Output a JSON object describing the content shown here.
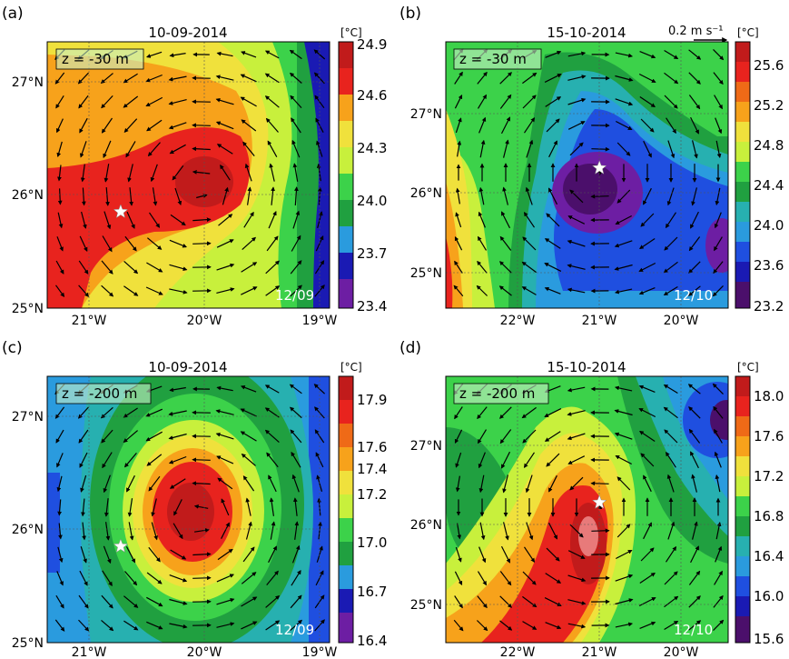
{
  "scale": {
    "label": "0.2 m s⁻¹"
  },
  "colors": {
    "deep_purple": "#4b0f6b",
    "purple": "#6d1ea3",
    "dark_blue": "#1a1ab3",
    "blue": "#1f4fe0",
    "light_blue": "#2a9bde",
    "teal": "#27b0b0",
    "dark_green": "#20a040",
    "green": "#3cd24a",
    "yellowgreen": "#c8f03c",
    "yellow": "#f0e13c",
    "orange": "#f7a21b",
    "dark_orange": "#ef6a17",
    "red": "#e8231e",
    "dark_red": "#c11b1b"
  },
  "chart_data": [
    {
      "panel": "(a)",
      "type": "heatmap",
      "title": "10-09-2014",
      "depth_label": "z = -30 m",
      "stamp": "12/09",
      "unit": "[°C]",
      "x_ticks": [
        "21°W",
        "20°W",
        "19°W"
      ],
      "y_ticks": [
        "27°N",
        "26°N",
        "25°N"
      ],
      "xlim": [
        -21.4,
        -18.9
      ],
      "ylim": [
        25.0,
        27.35
      ],
      "colorbar": {
        "ticks": [
          "24.9",
          "24.6",
          "24.3",
          "24.0",
          "23.7",
          "23.4"
        ],
        "range": [
          23.4,
          24.9
        ]
      },
      "feature": "warm anticyclonic eddy",
      "eddy_center": [
        -20.05,
        26.05
      ],
      "eddy_value": 24.85,
      "star": [
        -20.75,
        25.85
      ]
    },
    {
      "panel": "(b)",
      "type": "heatmap",
      "title": "15-10-2014",
      "depth_label": "z = -30 m",
      "stamp": "12/10",
      "unit": "[°C]",
      "x_ticks": [
        "22°W",
        "21°W",
        "20°W"
      ],
      "y_ticks": [
        "27°N",
        "26°N",
        "25°N"
      ],
      "xlim": [
        -22.9,
        -19.5
      ],
      "ylim": [
        24.5,
        27.35
      ],
      "colorbar": {
        "ticks": [
          "25.6",
          "25.2",
          "24.8",
          "24.4",
          "24.0",
          "23.6",
          "23.2"
        ],
        "range": [
          23.2,
          25.8
        ]
      },
      "feature": "cold cyclonic core",
      "eddy_center": [
        -21.05,
        25.95
      ],
      "eddy_value": 23.3,
      "star": [
        -21.05,
        26.0
      ]
    },
    {
      "panel": "(c)",
      "type": "heatmap",
      "title": "10-09-2014",
      "depth_label": "z = -200 m",
      "stamp": "12/09",
      "unit": "[°C]",
      "x_ticks": [
        "21°W",
        "20°W",
        "19°W"
      ],
      "y_ticks": [
        "27°N",
        "26°N",
        "25°N"
      ],
      "xlim": [
        -21.4,
        -18.9
      ],
      "ylim": [
        25.0,
        27.35
      ],
      "colorbar": {
        "ticks": [
          "17.9",
          "17.6",
          "17.4",
          "17.2",
          "17.0",
          "16.7",
          "16.4"
        ],
        "range": [
          16.4,
          18.0
        ]
      },
      "feature": "warm subsurface eddy",
      "eddy_center": [
        -20.05,
        26.1
      ],
      "eddy_value": 17.95,
      "star": [
        -20.75,
        25.85
      ]
    },
    {
      "panel": "(d)",
      "type": "heatmap",
      "title": "15-10-2014",
      "depth_label": "z = -200 m",
      "stamp": "12/10",
      "unit": "[°C]",
      "x_ticks": [
        "22°W",
        "21°W",
        "20°W"
      ],
      "y_ticks": [
        "27°N",
        "26°N",
        "25°N"
      ],
      "xlim": [
        -22.9,
        -19.5
      ],
      "ylim": [
        24.5,
        27.35
      ],
      "colorbar": {
        "ticks": [
          "18.0",
          "17.6",
          "17.2",
          "16.8",
          "16.4",
          "16.0",
          "15.6"
        ],
        "range": [
          15.6,
          18.2
        ]
      },
      "feature": "warm subsurface eddy",
      "eddy_center": [
        -21.05,
        25.95
      ],
      "eddy_value": 18.1,
      "star": [
        -21.05,
        26.0
      ]
    }
  ]
}
